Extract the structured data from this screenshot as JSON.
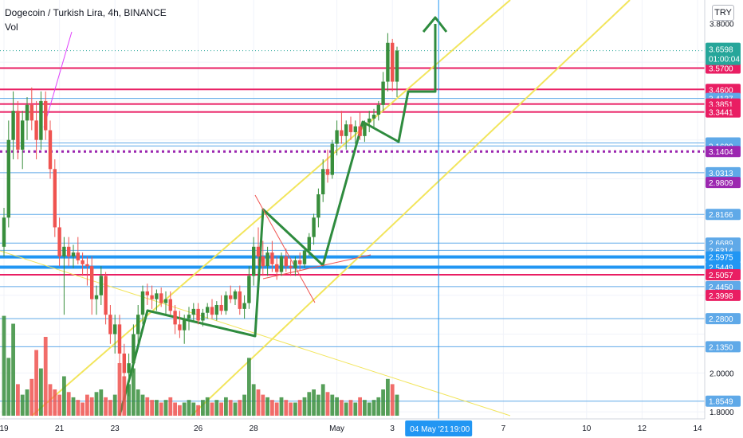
{
  "header": {
    "title": "Dogecoin / Turkish Lira, 4h, BINANCE",
    "volume_label": "Vol",
    "currency_button": "TRY"
  },
  "colors": {
    "up": "#388e3c",
    "down": "#ef5350",
    "hline_red": "#e91e63",
    "hline_blue": "#5fa9e8",
    "hline_blue_thick": "#2196f3",
    "hline_purple": "#9c27b0",
    "channel": "#f2e55c",
    "drawing": "#2e8b3e",
    "current_price": "#26a69a"
  },
  "chart_data": {
    "type": "candlestick",
    "title": "Dogecoin / Turkish Lira, 4h, BINANCE",
    "ylim": [
      1.78,
      3.9
    ],
    "y_ticks": [
      "3.8000",
      "2.0000",
      "1.8000"
    ],
    "x_ticks": [
      {
        "label": "19",
        "bar": 0
      },
      {
        "label": "21",
        "bar": 12
      },
      {
        "label": "23",
        "bar": 24
      },
      {
        "label": "26",
        "bar": 42
      },
      {
        "label": "28",
        "bar": 54
      },
      {
        "label": "May",
        "bar": 72
      },
      {
        "label": "3",
        "bar": 84
      },
      {
        "label": "7",
        "bar": 108
      },
      {
        "label": "10",
        "bar": 126
      },
      {
        "label": "12",
        "bar": 138
      },
      {
        "label": "14",
        "bar": 150
      }
    ],
    "crosshair": {
      "bar": 94,
      "date_label": "04 May '21",
      "time_label": "19:00"
    },
    "price_lines": [
      {
        "price": 3.57,
        "label": "3.5700",
        "kind": "red"
      },
      {
        "price": 3.46,
        "label": "3.4600",
        "kind": "red"
      },
      {
        "price": 3.4137,
        "label": "3.4137",
        "kind": "blue"
      },
      {
        "price": 3.3851,
        "label": "3.3851",
        "kind": "red"
      },
      {
        "price": 3.3441,
        "label": "3.3441",
        "kind": "red"
      },
      {
        "price": 3.1846,
        "label": "3.1846",
        "kind": "blue"
      },
      {
        "price": 3.169,
        "label": "3.1690",
        "kind": "blue"
      },
      {
        "price": 3.1404,
        "label": "3.1404",
        "kind": "purple"
      },
      {
        "price": 3.0313,
        "label": "3.0313",
        "kind": "blue"
      },
      {
        "price": 2.9809,
        "label": "2.9809",
        "kind": "purple_label"
      },
      {
        "price": 2.8166,
        "label": "2.8166",
        "kind": "blue"
      },
      {
        "price": 2.6689,
        "label": "2.6689",
        "kind": "blue"
      },
      {
        "price": 2.6314,
        "label": "2.6314",
        "kind": "blue"
      },
      {
        "price": 2.5975,
        "label": "2.5975",
        "kind": "blue_thick"
      },
      {
        "price": 2.5449,
        "label": "2.5449",
        "kind": "blue_thick"
      },
      {
        "price": 2.5057,
        "label": "2.5057",
        "kind": "red"
      },
      {
        "price": 2.445,
        "label": "2.4450",
        "kind": "blue"
      },
      {
        "price": 2.3998,
        "label": "2.3998",
        "kind": "red_label"
      },
      {
        "price": 2.28,
        "label": "2.2800",
        "kind": "blue"
      },
      {
        "price": 2.135,
        "label": "2.1350",
        "kind": "blue"
      },
      {
        "price": 1.8549,
        "label": "1.8549",
        "kind": "blue"
      }
    ],
    "current_price": {
      "label": "3.6598",
      "countdown": "01:00:04",
      "price": 3.6598
    },
    "candles": [
      [
        2.65,
        2.85,
        2.6,
        2.8
      ],
      [
        2.8,
        3.3,
        2.75,
        3.2
      ],
      [
        3.2,
        3.45,
        3.1,
        3.35
      ],
      [
        3.35,
        3.4,
        3.1,
        3.15
      ],
      [
        3.15,
        3.35,
        3.05,
        3.3
      ],
      [
        3.3,
        3.42,
        3.2,
        3.38
      ],
      [
        3.38,
        3.47,
        3.25,
        3.3
      ],
      [
        3.3,
        3.4,
        3.1,
        3.2
      ],
      [
        3.2,
        3.45,
        3.15,
        3.4
      ],
      [
        3.4,
        3.45,
        3.2,
        3.25
      ],
      [
        3.25,
        3.3,
        3.0,
        3.05
      ],
      [
        3.05,
        3.1,
        2.7,
        2.75
      ],
      [
        2.75,
        2.8,
        2.55,
        2.6
      ],
      [
        2.6,
        2.7,
        2.3,
        2.65
      ],
      [
        2.65,
        2.7,
        2.55,
        2.6
      ],
      [
        2.6,
        2.66,
        2.54,
        2.62
      ],
      [
        2.62,
        2.7,
        2.56,
        2.58
      ],
      [
        2.58,
        2.62,
        2.5,
        2.56
      ],
      [
        2.56,
        2.6,
        2.45,
        2.55
      ],
      [
        2.55,
        2.6,
        2.3,
        2.38
      ],
      [
        2.38,
        2.45,
        2.3,
        2.4
      ],
      [
        2.4,
        2.55,
        2.35,
        2.5
      ],
      [
        2.5,
        2.52,
        2.25,
        2.3
      ],
      [
        2.3,
        2.35,
        2.15,
        2.2
      ],
      [
        2.2,
        2.3,
        2.1,
        2.25
      ],
      [
        2.25,
        2.3,
        2.05,
        2.1
      ],
      [
        2.1,
        2.15,
        1.9,
        2.0
      ],
      [
        2.0,
        2.1,
        1.88,
        2.05
      ],
      [
        2.05,
        2.25,
        2.0,
        2.2
      ],
      [
        2.2,
        2.35,
        2.15,
        2.3
      ],
      [
        2.3,
        2.45,
        2.25,
        2.42
      ],
      [
        2.42,
        2.46,
        2.35,
        2.4
      ],
      [
        2.4,
        2.45,
        2.33,
        2.38
      ],
      [
        2.38,
        2.43,
        2.32,
        2.41
      ],
      [
        2.41,
        2.44,
        2.34,
        2.36
      ],
      [
        2.36,
        2.42,
        2.3,
        2.38
      ],
      [
        2.38,
        2.42,
        2.3,
        2.32
      ],
      [
        2.32,
        2.35,
        2.2,
        2.25
      ],
      [
        2.25,
        2.32,
        2.18,
        2.22
      ],
      [
        2.22,
        2.3,
        2.15,
        2.28
      ],
      [
        2.28,
        2.34,
        2.22,
        2.3
      ],
      [
        2.3,
        2.36,
        2.26,
        2.33
      ],
      [
        2.33,
        2.36,
        2.25,
        2.27
      ],
      [
        2.27,
        2.33,
        2.24,
        2.31
      ],
      [
        2.31,
        2.36,
        2.28,
        2.34
      ],
      [
        2.34,
        2.38,
        2.28,
        2.3
      ],
      [
        2.3,
        2.37,
        2.27,
        2.35
      ],
      [
        2.35,
        2.4,
        2.3,
        2.32
      ],
      [
        2.32,
        2.42,
        2.3,
        2.4
      ],
      [
        2.4,
        2.45,
        2.36,
        2.38
      ],
      [
        2.38,
        2.43,
        2.35,
        2.42
      ],
      [
        2.42,
        2.45,
        2.3,
        2.33
      ],
      [
        2.33,
        2.4,
        2.28,
        2.36
      ],
      [
        2.36,
        2.55,
        2.33,
        2.5
      ],
      [
        2.5,
        2.7,
        2.45,
        2.65
      ],
      [
        2.65,
        2.75,
        2.55,
        2.6
      ],
      [
        2.6,
        2.68,
        2.5,
        2.55
      ],
      [
        2.55,
        2.65,
        2.5,
        2.62
      ],
      [
        2.62,
        2.68,
        2.52,
        2.56
      ],
      [
        2.56,
        2.6,
        2.48,
        2.52
      ],
      [
        2.52,
        2.62,
        2.5,
        2.6
      ],
      [
        2.6,
        2.64,
        2.52,
        2.55
      ],
      [
        2.55,
        2.58,
        2.5,
        2.54
      ],
      [
        2.54,
        2.6,
        2.5,
        2.58
      ],
      [
        2.58,
        2.62,
        2.53,
        2.56
      ],
      [
        2.56,
        2.65,
        2.54,
        2.63
      ],
      [
        2.63,
        2.72,
        2.6,
        2.7
      ],
      [
        2.7,
        2.82,
        2.66,
        2.8
      ],
      [
        2.8,
        2.95,
        2.75,
        2.92
      ],
      [
        2.92,
        3.1,
        2.88,
        3.05
      ],
      [
        3.05,
        3.15,
        2.98,
        3.02
      ],
      [
        3.02,
        3.2,
        3.0,
        3.18
      ],
      [
        3.18,
        3.3,
        3.12,
        3.25
      ],
      [
        3.25,
        3.35,
        3.18,
        3.22
      ],
      [
        3.22,
        3.3,
        3.15,
        3.28
      ],
      [
        3.28,
        3.32,
        3.2,
        3.24
      ],
      [
        3.24,
        3.3,
        3.18,
        3.27
      ],
      [
        3.27,
        3.34,
        3.2,
        3.22
      ],
      [
        3.22,
        3.3,
        3.19,
        3.29
      ],
      [
        3.29,
        3.35,
        3.24,
        3.31
      ],
      [
        3.31,
        3.36,
        3.26,
        3.33
      ],
      [
        3.33,
        3.4,
        3.3,
        3.38
      ],
      [
        3.38,
        3.55,
        3.35,
        3.5
      ],
      [
        3.5,
        3.75,
        3.45,
        3.7
      ],
      [
        3.7,
        3.72,
        3.45,
        3.5
      ],
      [
        3.5,
        3.68,
        3.42,
        3.66
      ]
    ],
    "volumes": [
      0.38,
      0.22,
      0.35,
      0.12,
      0.08,
      0.1,
      0.14,
      0.25,
      0.18,
      0.3,
      0.12,
      0.1,
      0.08,
      0.15,
      0.09,
      0.07,
      0.06,
      0.05,
      0.08,
      0.07,
      0.09,
      0.1,
      0.07,
      0.06,
      0.08,
      0.2,
      0.15,
      0.12,
      0.18,
      0.1,
      0.08,
      0.07,
      0.06,
      0.06,
      0.05,
      0.06,
      0.07,
      0.05,
      0.04,
      0.05,
      0.06,
      0.05,
      0.04,
      0.06,
      0.07,
      0.05,
      0.06,
      0.05,
      0.07,
      0.06,
      0.05,
      0.06,
      0.08,
      0.22,
      0.12,
      0.1,
      0.08,
      0.07,
      0.06,
      0.05,
      0.07,
      0.06,
      0.05,
      0.05,
      0.06,
      0.07,
      0.09,
      0.1,
      0.08,
      0.12,
      0.09,
      0.08,
      0.07,
      0.06,
      0.05,
      0.06,
      0.05,
      0.07,
      0.06,
      0.05,
      0.06,
      0.07,
      0.1,
      0.14,
      0.12,
      0.08
    ]
  }
}
